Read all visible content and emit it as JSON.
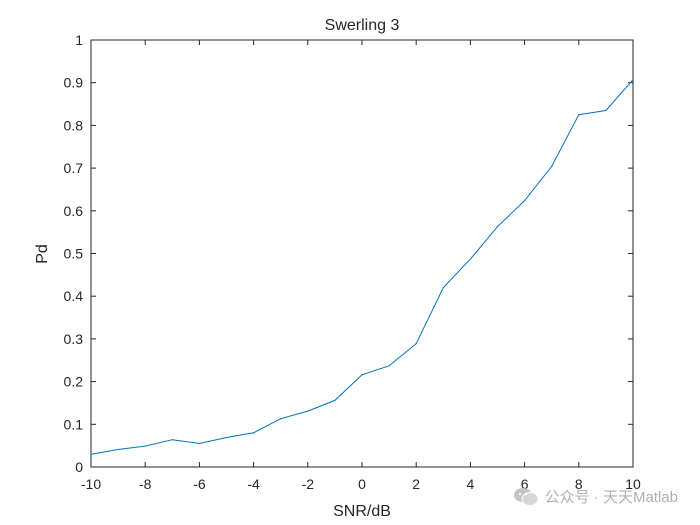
{
  "chart_data": {
    "type": "line",
    "title": "Swerling 3",
    "xlabel": "SNR/dB",
    "ylabel": "Pd",
    "xlim": [
      -10,
      10
    ],
    "ylim": [
      0,
      1
    ],
    "xticks": [
      -10,
      -8,
      -6,
      -4,
      -2,
      0,
      2,
      4,
      6,
      8,
      10
    ],
    "yticks": [
      0,
      0.1,
      0.2,
      0.3,
      0.4,
      0.5,
      0.6,
      0.7,
      0.8,
      0.9,
      1
    ],
    "grid": false,
    "series": [
      {
        "name": "Pd",
        "color": "#0072BD",
        "x": [
          -10,
          -9,
          -8,
          -7,
          -6,
          -5,
          -4,
          -3,
          -2,
          -1,
          0,
          1,
          2,
          3,
          4,
          5,
          6,
          7,
          8,
          9,
          10
        ],
        "y": [
          0.03,
          0.041,
          0.049,
          0.064,
          0.055,
          0.069,
          0.08,
          0.113,
          0.131,
          0.156,
          0.216,
          0.237,
          0.289,
          0.42,
          0.487,
          0.563,
          0.624,
          0.704,
          0.825,
          0.835,
          0.907
        ]
      }
    ]
  },
  "watermark": {
    "text": "公众号 · 天天Matlab",
    "icon": "wechat-icon"
  }
}
